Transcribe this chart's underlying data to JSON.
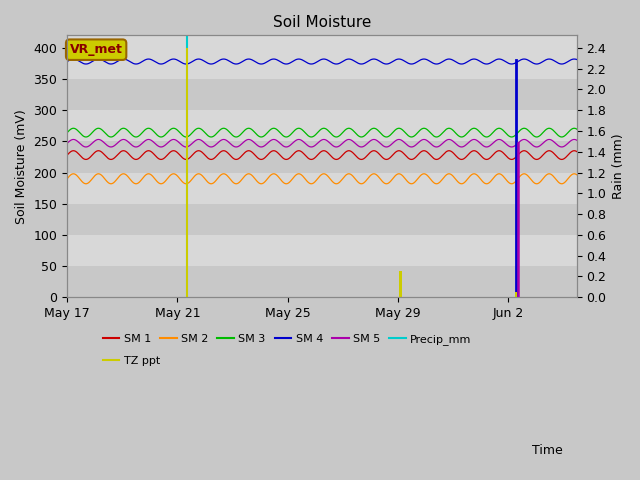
{
  "title": "Soil Moisture",
  "xlabel": "Time",
  "ylabel_left": "Soil Moisture (mV)",
  "ylabel_right": "Rain (mm)",
  "ylim_left": [
    0,
    420
  ],
  "ylim_right": [
    0,
    2.52
  ],
  "fig_bg": "#c8c8c8",
  "plot_bg": "#d8d8d8",
  "sm_lines": {
    "SM 1": {
      "color": "#cc0000",
      "base": 228,
      "amp": 7,
      "freq": 1.1
    },
    "SM 2": {
      "color": "#ff8c00",
      "base": 190,
      "amp": 8,
      "freq": 1.1
    },
    "SM 3": {
      "color": "#00bb00",
      "base": 264,
      "amp": 7,
      "freq": 1.1
    },
    "SM 4": {
      "color": "#0000cc",
      "base": 378,
      "amp": 4,
      "freq": 1.1
    },
    "SM 5": {
      "color": "#aa00aa",
      "base": 247,
      "amp": 6,
      "freq": 1.1
    }
  },
  "precip_color": "#00cccc",
  "tz_ppt_color": "#cccc00",
  "vr_met_label": "VR_met",
  "vr_met_bg": "#cccc00",
  "vr_met_border": "#996600",
  "vr_met_text": "#880000",
  "x_ticks_labels": [
    "May 17",
    "May 21",
    "May 25",
    "May 29",
    "Jun 2"
  ],
  "x_ticks_days": [
    0,
    4,
    8,
    12,
    16
  ],
  "total_days": 18.5,
  "cyan_line_day": 4.35,
  "blue_bar_day": 16.3,
  "magenta_bar_day": 16.35,
  "tz_ppt_day1": 4.35,
  "tz_ppt_height1": 2.4,
  "tz_ppt_day2": 12.1,
  "tz_ppt_height2": 0.25,
  "tz_ppt_day3": 16.3,
  "tz_ppt_height3": 0.05,
  "yticks_left": [
    0,
    50,
    100,
    150,
    200,
    250,
    300,
    350,
    400
  ],
  "yticks_right": [
    0.0,
    0.2,
    0.4,
    0.6,
    0.8,
    1.0,
    1.2,
    1.4,
    1.6,
    1.8,
    2.0,
    2.2,
    2.4
  ],
  "band_colors": [
    "#c8c8c8",
    "#d8d8d8"
  ],
  "legend_row1": [
    "SM 1",
    "SM 2",
    "SM 3",
    "SM 4",
    "SM 5",
    "Precip_mm"
  ],
  "legend_row2": [
    "TZ ppt"
  ],
  "legend_colors_row1": [
    "#cc0000",
    "#ff8c00",
    "#00bb00",
    "#0000cc",
    "#aa00aa",
    "#00cccc"
  ],
  "legend_colors_row2": [
    "#cccc00"
  ]
}
